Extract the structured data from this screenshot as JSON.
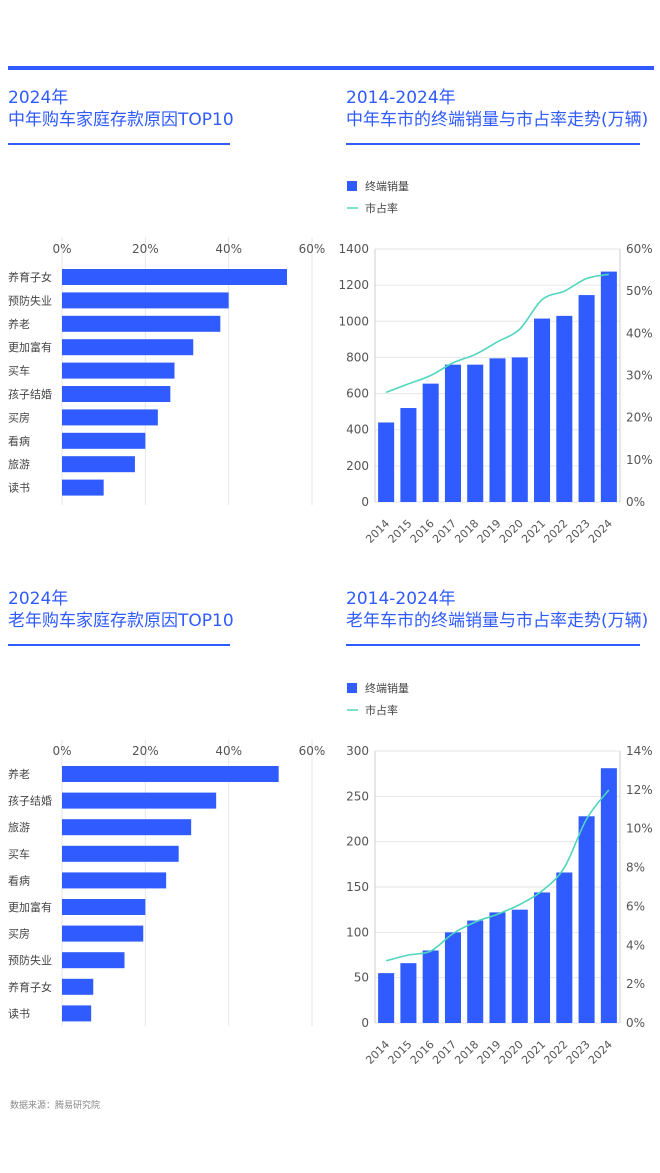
{
  "source": "数据来源：腾易研究院",
  "colors": {
    "accent": "#2f5bff",
    "bar": "#2f5bff",
    "line": "#4fd6bd",
    "grid": "#e6e6e6",
    "text": "#555555"
  },
  "chart_data": [
    {
      "type": "bar",
      "orientation": "horizontal",
      "title_line1": "2024年",
      "title_line2": "中年购车家庭存款原因TOP10",
      "categories": [
        "养育子女",
        "预防失业",
        "养老",
        "更加富有",
        "买车",
        "孩子结婚",
        "买房",
        "看病",
        "旅游",
        "读书"
      ],
      "values": [
        54,
        40,
        38,
        31.5,
        27,
        26,
        23,
        20,
        17.5,
        10
      ],
      "value_unit": "%",
      "xlim": [
        0,
        60
      ],
      "xticks": [
        "0%",
        "20%",
        "40%",
        "60%"
      ],
      "grid": true
    },
    {
      "type": "bar+line",
      "title_line1": "2014-2024年",
      "title_line2": "中年车市的终端销量与市占率走势(万辆)",
      "x": [
        "2014",
        "2015",
        "2016",
        "2017",
        "2018",
        "2019",
        "2020",
        "2021",
        "2022",
        "2023",
        "2024"
      ],
      "series": [
        {
          "name": "终端销量",
          "type": "bar",
          "axis": "left",
          "values": [
            440,
            520,
            655,
            760,
            760,
            795,
            800,
            1015,
            1030,
            1145,
            1275
          ]
        },
        {
          "name": "市占率",
          "type": "line",
          "axis": "right",
          "values": [
            26,
            28,
            30,
            33,
            35,
            38,
            41,
            48,
            50,
            53,
            54
          ]
        }
      ],
      "ylim_left": [
        0,
        1400
      ],
      "yticks_left": [
        "0",
        "200",
        "400",
        "600",
        "800",
        "1000",
        "1200",
        "1400"
      ],
      "ylim_right": [
        0,
        60
      ],
      "yticks_right": [
        "0%",
        "10%",
        "20%",
        "30%",
        "40%",
        "50%",
        "60%"
      ],
      "legend": "top-left"
    },
    {
      "type": "bar",
      "orientation": "horizontal",
      "title_line1": "2024年",
      "title_line2": "老年购车家庭存款原因TOP10",
      "categories": [
        "养老",
        "孩子结婚",
        "旅游",
        "买车",
        "看病",
        "更加富有",
        "买房",
        "预防失业",
        "养育子女",
        "读书"
      ],
      "values": [
        52,
        37,
        31,
        28,
        25,
        20,
        19.5,
        15,
        7.5,
        7
      ],
      "value_unit": "%",
      "xlim": [
        0,
        60
      ],
      "xticks": [
        "0%",
        "20%",
        "40%",
        "60%"
      ],
      "grid": true
    },
    {
      "type": "bar+line",
      "title_line1": "2014-2024年",
      "title_line2": "老年车市的终端销量与市占率走势(万辆)",
      "x": [
        "2014",
        "2015",
        "2016",
        "2017",
        "2018",
        "2019",
        "2020",
        "2021",
        "2022",
        "2023",
        "2024"
      ],
      "series": [
        {
          "name": "终端销量",
          "type": "bar",
          "axis": "left",
          "values": [
            55,
            66,
            80,
            100,
            113,
            122,
            125,
            144,
            166,
            228,
            281
          ]
        },
        {
          "name": "市占率",
          "type": "line",
          "axis": "right",
          "values": [
            3.2,
            3.5,
            3.7,
            4.6,
            5.2,
            5.6,
            6.1,
            6.8,
            8.0,
            10.5,
            12.0
          ]
        }
      ],
      "ylim_left": [
        0,
        300
      ],
      "yticks_left": [
        "0",
        "50",
        "100",
        "150",
        "200",
        "250",
        "300"
      ],
      "ylim_right": [
        0,
        14
      ],
      "yticks_right": [
        "0%",
        "2%",
        "4%",
        "6%",
        "8%",
        "10%",
        "12%",
        "14%"
      ],
      "legend": "top-left"
    }
  ]
}
